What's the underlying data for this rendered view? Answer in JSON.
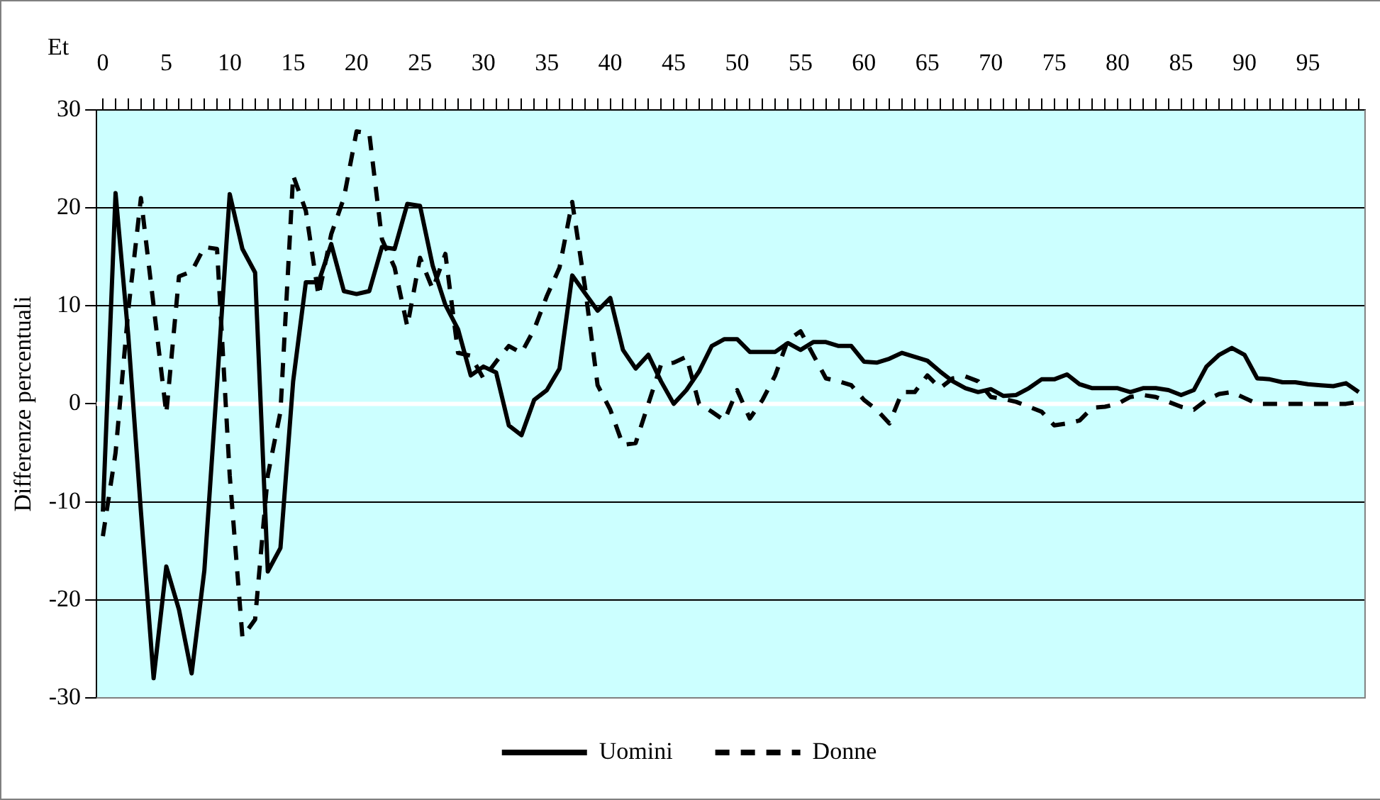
{
  "chart_data": {
    "type": "line",
    "xlabel": "Et",
    "ylabel": "Differenze percentuali",
    "categories": [
      "0",
      null,
      null,
      null,
      null,
      "5",
      null,
      null,
      null,
      null,
      "10",
      null,
      null,
      null,
      null,
      "15",
      null,
      null,
      null,
      null,
      "20",
      null,
      null,
      null,
      null,
      "25",
      null,
      null,
      null,
      null,
      "30",
      null,
      null,
      null,
      null,
      "35",
      null,
      null,
      null,
      null,
      "40",
      null,
      null,
      null,
      null,
      "45",
      null,
      null,
      null,
      null,
      "50",
      null,
      null,
      null,
      null,
      "55",
      null,
      null,
      null,
      null,
      "60",
      null,
      null,
      null,
      null,
      "65",
      null,
      null,
      null,
      null,
      "70",
      null,
      null,
      null,
      null,
      "75",
      null,
      null,
      null,
      null,
      "80",
      null,
      null,
      null,
      null,
      "85",
      null,
      null,
      null,
      null,
      "90",
      null,
      null,
      null,
      null,
      "95",
      null,
      null,
      null,
      null
    ],
    "series": [
      {
        "name": "Uomini",
        "color": "#000000",
        "line_style": "solid",
        "values": [
          -11,
          21.5,
          7,
          -11,
          -28,
          -16.6,
          -21,
          -27.5,
          -17,
          2,
          21.4,
          15.8,
          13.4,
          -17.1,
          -14.7,
          2.3,
          12.4,
          12.4,
          16.3,
          11.5,
          11.2,
          11.5,
          16,
          15.8,
          20.4,
          20.2,
          14.1,
          10.1,
          7.6,
          2.9,
          3.8,
          3.2,
          -2.2,
          -3.2,
          0.4,
          1.4,
          3.6,
          13.1,
          11.3,
          9.5,
          10.8,
          5.5,
          3.6,
          5,
          2.3,
          0,
          1.4,
          3.3,
          5.9,
          6.6,
          6.6,
          5.3,
          5.3,
          5.3,
          6.2,
          5.5,
          6.3,
          6.3,
          5.9,
          5.9,
          4.3,
          4.2,
          4.6,
          5.2,
          4.8,
          4.4,
          3.3,
          2.3,
          1.6,
          1.2,
          1.5,
          0.8,
          0.9,
          1.6,
          2.5,
          2.5,
          3,
          2,
          1.6,
          1.6,
          1.6,
          1.2,
          1.6,
          1.6,
          1.4,
          0.9,
          1.4,
          3.8,
          5,
          5.7,
          5,
          2.6,
          2.5,
          2.2,
          2.2,
          2,
          1.9,
          1.8,
          2.1,
          1.2
        ]
      },
      {
        "name": "Donne",
        "color": "#000000",
        "line_style": "dashed",
        "values": [
          -13.5,
          -5,
          9.5,
          21,
          10,
          -1,
          13,
          13.5,
          16,
          15.8,
          -7.3,
          -23.8,
          -22,
          -7.3,
          -0.8,
          23.3,
          19.7,
          11,
          17.3,
          21,
          27.8,
          27.6,
          16.8,
          13.9,
          7.9,
          14.9,
          11.7,
          15.3,
          5.2,
          4.9,
          2.6,
          4.3,
          5.9,
          5.2,
          7.6,
          11,
          13.9,
          20.6,
          12,
          1.9,
          -0.6,
          -4.2,
          -4,
          0,
          4,
          4.2,
          4.8,
          0,
          -0.8,
          -1.7,
          1.4,
          -1.5,
          0.4,
          2.9,
          6.5,
          7.4,
          5,
          2.6,
          2.3,
          1.9,
          0.4,
          -0.6,
          -2,
          1.2,
          1.2,
          2.9,
          1.6,
          2.6,
          2.8,
          2.3,
          0.7,
          0.5,
          0.2,
          -0.3,
          -0.8,
          -2.2,
          -2,
          -1.7,
          -0.4,
          -0.3,
          0,
          0.7,
          0.9,
          0.7,
          0.2,
          -0.3,
          -0.6,
          0.4,
          1,
          1.2,
          0.6,
          0,
          0,
          0,
          0,
          0,
          0,
          0,
          0,
          0.2
        ]
      }
    ],
    "ylim": [
      -30,
      30
    ],
    "yticks": [
      -30,
      -20,
      -10,
      0,
      10,
      20,
      30
    ],
    "grid": "y",
    "legend": "bottom",
    "marker": "none",
    "ref_lines": [
      {
        "axis": "y",
        "value": 0,
        "color": "#ffffff"
      }
    ]
  }
}
